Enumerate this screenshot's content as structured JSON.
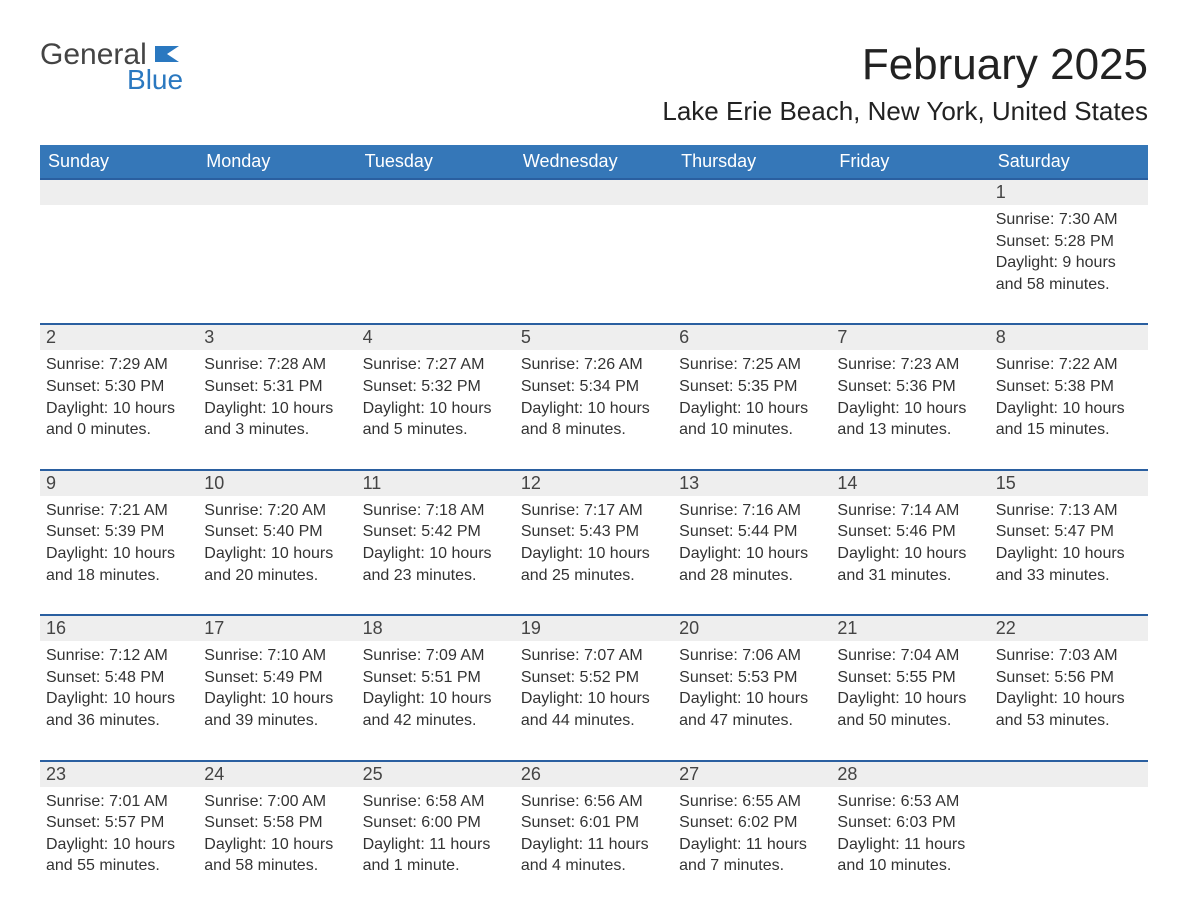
{
  "colors": {
    "header_blue": "#3577b8",
    "accent_blue": "#2a78c0",
    "grey_bg": "#eeeeee",
    "text": "#333333",
    "background": "#ffffff"
  },
  "logo": {
    "word1": "General",
    "word2": "Blue"
  },
  "title": "February 2025",
  "location": "Lake Erie Beach, New York, United States",
  "days_of_week": [
    "Sunday",
    "Monday",
    "Tuesday",
    "Wednesday",
    "Thursday",
    "Friday",
    "Saturday"
  ],
  "weeks": [
    [
      null,
      null,
      null,
      null,
      null,
      null,
      {
        "n": "1",
        "sunrise": "Sunrise: 7:30 AM",
        "sunset": "Sunset: 5:28 PM",
        "daylight": "Daylight: 9 hours and 58 minutes."
      }
    ],
    [
      {
        "n": "2",
        "sunrise": "Sunrise: 7:29 AM",
        "sunset": "Sunset: 5:30 PM",
        "daylight": "Daylight: 10 hours and 0 minutes."
      },
      {
        "n": "3",
        "sunrise": "Sunrise: 7:28 AM",
        "sunset": "Sunset: 5:31 PM",
        "daylight": "Daylight: 10 hours and 3 minutes."
      },
      {
        "n": "4",
        "sunrise": "Sunrise: 7:27 AM",
        "sunset": "Sunset: 5:32 PM",
        "daylight": "Daylight: 10 hours and 5 minutes."
      },
      {
        "n": "5",
        "sunrise": "Sunrise: 7:26 AM",
        "sunset": "Sunset: 5:34 PM",
        "daylight": "Daylight: 10 hours and 8 minutes."
      },
      {
        "n": "6",
        "sunrise": "Sunrise: 7:25 AM",
        "sunset": "Sunset: 5:35 PM",
        "daylight": "Daylight: 10 hours and 10 minutes."
      },
      {
        "n": "7",
        "sunrise": "Sunrise: 7:23 AM",
        "sunset": "Sunset: 5:36 PM",
        "daylight": "Daylight: 10 hours and 13 minutes."
      },
      {
        "n": "8",
        "sunrise": "Sunrise: 7:22 AM",
        "sunset": "Sunset: 5:38 PM",
        "daylight": "Daylight: 10 hours and 15 minutes."
      }
    ],
    [
      {
        "n": "9",
        "sunrise": "Sunrise: 7:21 AM",
        "sunset": "Sunset: 5:39 PM",
        "daylight": "Daylight: 10 hours and 18 minutes."
      },
      {
        "n": "10",
        "sunrise": "Sunrise: 7:20 AM",
        "sunset": "Sunset: 5:40 PM",
        "daylight": "Daylight: 10 hours and 20 minutes."
      },
      {
        "n": "11",
        "sunrise": "Sunrise: 7:18 AM",
        "sunset": "Sunset: 5:42 PM",
        "daylight": "Daylight: 10 hours and 23 minutes."
      },
      {
        "n": "12",
        "sunrise": "Sunrise: 7:17 AM",
        "sunset": "Sunset: 5:43 PM",
        "daylight": "Daylight: 10 hours and 25 minutes."
      },
      {
        "n": "13",
        "sunrise": "Sunrise: 7:16 AM",
        "sunset": "Sunset: 5:44 PM",
        "daylight": "Daylight: 10 hours and 28 minutes."
      },
      {
        "n": "14",
        "sunrise": "Sunrise: 7:14 AM",
        "sunset": "Sunset: 5:46 PM",
        "daylight": "Daylight: 10 hours and 31 minutes."
      },
      {
        "n": "15",
        "sunrise": "Sunrise: 7:13 AM",
        "sunset": "Sunset: 5:47 PM",
        "daylight": "Daylight: 10 hours and 33 minutes."
      }
    ],
    [
      {
        "n": "16",
        "sunrise": "Sunrise: 7:12 AM",
        "sunset": "Sunset: 5:48 PM",
        "daylight": "Daylight: 10 hours and 36 minutes."
      },
      {
        "n": "17",
        "sunrise": "Sunrise: 7:10 AM",
        "sunset": "Sunset: 5:49 PM",
        "daylight": "Daylight: 10 hours and 39 minutes."
      },
      {
        "n": "18",
        "sunrise": "Sunrise: 7:09 AM",
        "sunset": "Sunset: 5:51 PM",
        "daylight": "Daylight: 10 hours and 42 minutes."
      },
      {
        "n": "19",
        "sunrise": "Sunrise: 7:07 AM",
        "sunset": "Sunset: 5:52 PM",
        "daylight": "Daylight: 10 hours and 44 minutes."
      },
      {
        "n": "20",
        "sunrise": "Sunrise: 7:06 AM",
        "sunset": "Sunset: 5:53 PM",
        "daylight": "Daylight: 10 hours and 47 minutes."
      },
      {
        "n": "21",
        "sunrise": "Sunrise: 7:04 AM",
        "sunset": "Sunset: 5:55 PM",
        "daylight": "Daylight: 10 hours and 50 minutes."
      },
      {
        "n": "22",
        "sunrise": "Sunrise: 7:03 AM",
        "sunset": "Sunset: 5:56 PM",
        "daylight": "Daylight: 10 hours and 53 minutes."
      }
    ],
    [
      {
        "n": "23",
        "sunrise": "Sunrise: 7:01 AM",
        "sunset": "Sunset: 5:57 PM",
        "daylight": "Daylight: 10 hours and 55 minutes."
      },
      {
        "n": "24",
        "sunrise": "Sunrise: 7:00 AM",
        "sunset": "Sunset: 5:58 PM",
        "daylight": "Daylight: 10 hours and 58 minutes."
      },
      {
        "n": "25",
        "sunrise": "Sunrise: 6:58 AM",
        "sunset": "Sunset: 6:00 PM",
        "daylight": "Daylight: 11 hours and 1 minute."
      },
      {
        "n": "26",
        "sunrise": "Sunrise: 6:56 AM",
        "sunset": "Sunset: 6:01 PM",
        "daylight": "Daylight: 11 hours and 4 minutes."
      },
      {
        "n": "27",
        "sunrise": "Sunrise: 6:55 AM",
        "sunset": "Sunset: 6:02 PM",
        "daylight": "Daylight: 11 hours and 7 minutes."
      },
      {
        "n": "28",
        "sunrise": "Sunrise: 6:53 AM",
        "sunset": "Sunset: 6:03 PM",
        "daylight": "Daylight: 11 hours and 10 minutes."
      },
      null
    ]
  ]
}
